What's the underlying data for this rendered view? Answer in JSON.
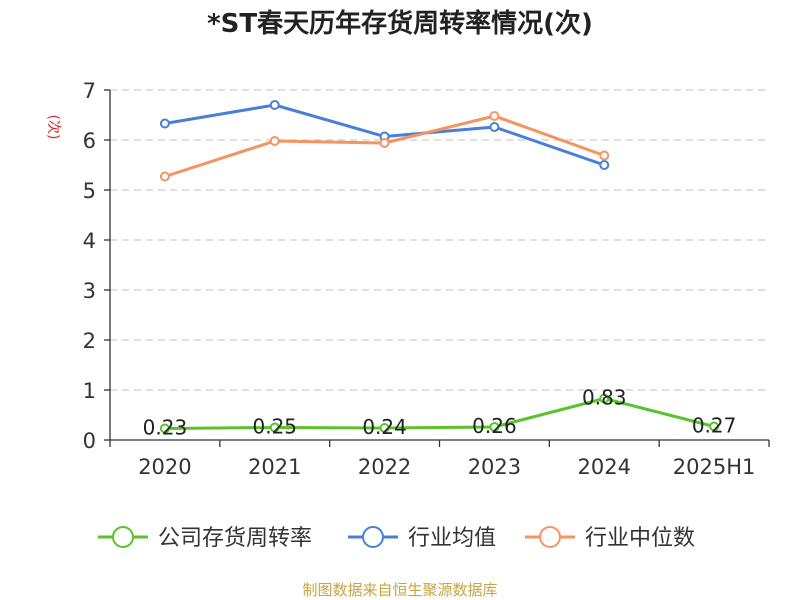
{
  "chart_data": {
    "type": "line",
    "title": "*ST春天历年存货周转率情况(次)",
    "ylabel": "(次)",
    "xlabel": "",
    "categories": [
      "2020",
      "2021",
      "2022",
      "2023",
      "2024",
      "2025H1"
    ],
    "ylim": [
      0,
      7
    ],
    "yticks": [
      "0",
      "1",
      "2",
      "3",
      "4",
      "5",
      "6",
      "7"
    ],
    "grid": true,
    "legend_position": "bottom",
    "series": [
      {
        "name": "公司存货周转率",
        "color": "#5cc229",
        "values": [
          0.23,
          0.25,
          0.24,
          0.26,
          0.83,
          0.27
        ],
        "labels": [
          "0.23",
          "0.25",
          "0.24",
          "0.26",
          "0.83",
          "0.27"
        ]
      },
      {
        "name": "行业均值",
        "color": "#4a7fd8",
        "values": [
          6.33,
          6.7,
          6.07,
          6.26,
          5.5,
          null
        ]
      },
      {
        "name": "行业中位数",
        "color": "#f59361",
        "values": [
          5.27,
          5.98,
          5.94,
          6.48,
          5.69,
          null
        ]
      }
    ]
  },
  "source": "制图数据来自恒生聚源数据库",
  "colors": {
    "ylabel": "#d42a2a",
    "source": "#c9a341",
    "grid": "#cccccc",
    "axis": "#333333"
  }
}
